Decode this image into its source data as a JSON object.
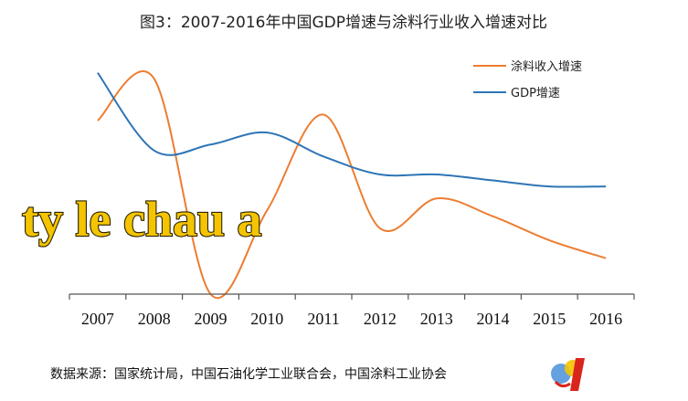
{
  "chart_data": {
    "type": "line",
    "title": "图3：2007-2016年中国GDP增速与涂料行业收入增速对比",
    "categories": [
      "2007",
      "2008",
      "2009",
      "2010",
      "2011",
      "2012",
      "2013",
      "2014",
      "2015",
      "2016"
    ],
    "series": [
      {
        "name": "涂料收入增速",
        "color": "#ed7d31",
        "values": [
          0.25,
          0.32,
          -0.04,
          0.1,
          0.26,
          0.07,
          0.12,
          0.09,
          0.05,
          0.02
        ]
      },
      {
        "name": "GDP增速",
        "color": "#2e75b6",
        "values": [
          0.33,
          0.2,
          0.21,
          0.23,
          0.19,
          0.16,
          0.16,
          0.15,
          0.14,
          0.14
        ]
      }
    ],
    "ylim": [
      -0.04,
      0.36
    ],
    "xlabel": "",
    "ylabel": "",
    "grid": false,
    "legend_position": "top-right",
    "y_axis_visible": false
  },
  "source_note": "数据来源：国家统计局，中国石油化学工业联合会，中国涂料工业协会",
  "watermark_text": "ty le chau a"
}
